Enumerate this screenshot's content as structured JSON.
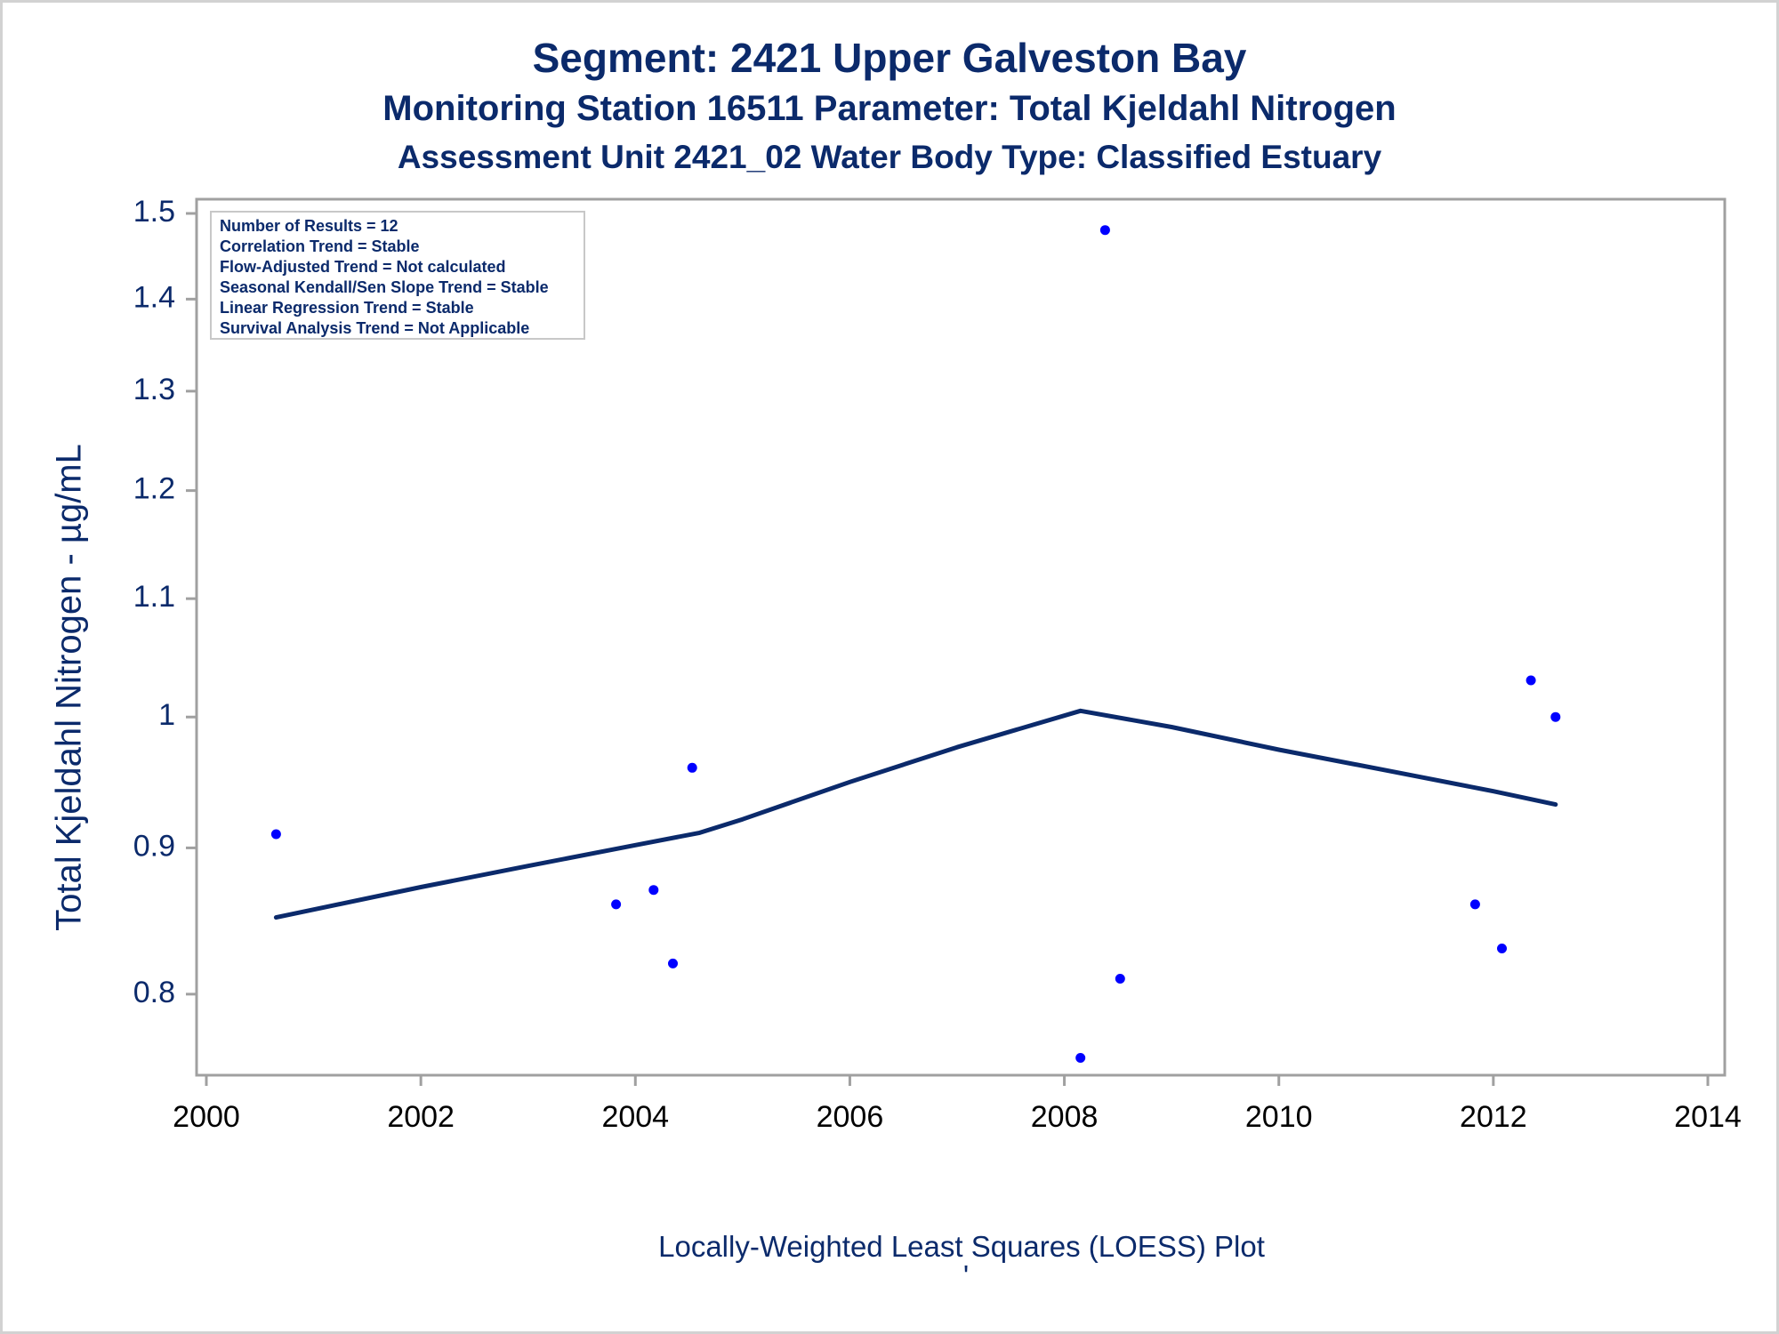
{
  "chart_data": {
    "type": "scatter",
    "title": "Segment: 2421  Upper Galveston Bay",
    "subtitle": "Monitoring Station 16511 Parameter: Total Kjeldahl Nitrogen",
    "subtitle2": "Assessment Unit 2421_02   Water Body Type: Classified Estuary",
    "ylabel": "Total Kjeldahl Nitrogen -  µg/mL",
    "xlabel": "Locally-Weighted Least Squares (LOESS) Plot",
    "footnote": "'",
    "xlim": [
      2000,
      2014
    ],
    "ylim": [
      0.75,
      1.5
    ],
    "y_scale": "log",
    "x_ticks": [
      2000,
      2002,
      2004,
      2006,
      2008,
      2010,
      2012,
      2014
    ],
    "y_ticks": [
      0.8,
      0.9,
      1,
      1.1,
      1.2,
      1.3,
      1.4,
      1.5
    ],
    "y_tick_labels": [
      "0.8",
      "0.9",
      "1",
      "1.1",
      "1.2",
      "1.3",
      "1.4",
      "1.5"
    ],
    "points": [
      {
        "x": 2000.65,
        "y": 0.91
      },
      {
        "x": 2003.82,
        "y": 0.86
      },
      {
        "x": 2004.17,
        "y": 0.87
      },
      {
        "x": 2004.35,
        "y": 0.82
      },
      {
        "x": 2004.53,
        "y": 0.96
      },
      {
        "x": 2008.15,
        "y": 0.76
      },
      {
        "x": 2008.38,
        "y": 1.48
      },
      {
        "x": 2008.52,
        "y": 0.81
      },
      {
        "x": 2011.83,
        "y": 0.86
      },
      {
        "x": 2012.08,
        "y": 0.83
      },
      {
        "x": 2012.35,
        "y": 1.03
      },
      {
        "x": 2012.58,
        "y": 1.0
      }
    ],
    "loess": [
      {
        "x": 2000.65,
        "y": 0.851
      },
      {
        "x": 2002.0,
        "y": 0.872
      },
      {
        "x": 2003.0,
        "y": 0.887
      },
      {
        "x": 2004.0,
        "y": 0.902
      },
      {
        "x": 2004.6,
        "y": 0.911
      },
      {
        "x": 2005.0,
        "y": 0.921
      },
      {
        "x": 2006.0,
        "y": 0.949
      },
      {
        "x": 2007.0,
        "y": 0.976
      },
      {
        "x": 2008.15,
        "y": 1.005
      },
      {
        "x": 2009.0,
        "y": 0.992
      },
      {
        "x": 2010.0,
        "y": 0.974
      },
      {
        "x": 2011.0,
        "y": 0.958
      },
      {
        "x": 2012.0,
        "y": 0.942
      },
      {
        "x": 2012.58,
        "y": 0.932
      }
    ],
    "inset_lines": [
      "Number of Results = 12",
      "Correlation Trend = Stable",
      "Flow-Adjusted Trend = Not calculated",
      "Seasonal Kendall/Sen Slope Trend = Stable",
      "Linear Regression Trend = Stable",
      "Survival Analysis Trend = Not Applicable"
    ],
    "legend_placement": "top-left",
    "grid": false,
    "colors": {
      "text": "#0b2a6b",
      "points": "#0000ff",
      "line": "#0b2a6b",
      "axis": "#a0a0a0"
    }
  }
}
